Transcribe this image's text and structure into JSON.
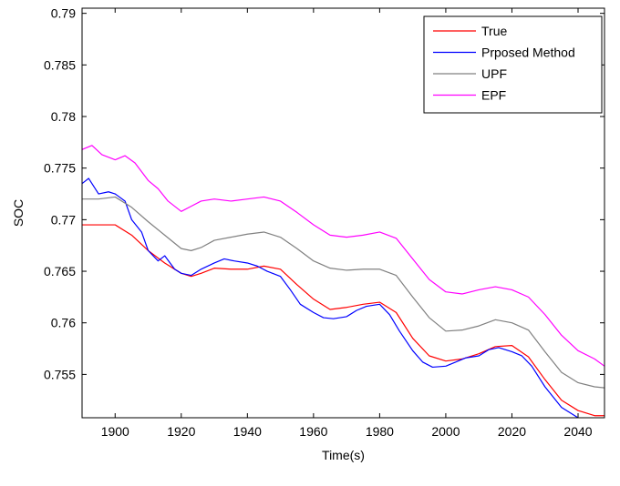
{
  "chart_data": {
    "type": "line",
    "title": "",
    "xlabel": "Time(s)",
    "ylabel": "SOC",
    "xlim": [
      1890,
      2048
    ],
    "ylim": [
      0.7508,
      0.7905
    ],
    "xticks": [
      1900,
      1920,
      1940,
      1960,
      1980,
      2000,
      2020,
      2040
    ],
    "yticks": [
      0.755,
      0.76,
      0.765,
      0.77,
      0.775,
      0.78,
      0.785,
      0.79
    ],
    "ytick_labels": [
      "0.755",
      "0.76",
      "0.765",
      "0.77",
      "0.775",
      "0.78",
      "0.785",
      "0.79"
    ],
    "grid": false,
    "legend_position": "top-right",
    "series": [
      {
        "name": "True",
        "color": "#ff0000",
        "x": [
          1890,
          1895,
          1900,
          1905,
          1910,
          1915,
          1920,
          1923,
          1926,
          1930,
          1935,
          1940,
          1945,
          1950,
          1955,
          1960,
          1965,
          1970,
          1975,
          1980,
          1985,
          1990,
          1995,
          2000,
          2005,
          2010,
          2015,
          2020,
          2025,
          2030,
          2035,
          2040,
          2045,
          2048
        ],
        "y": [
          0.7695,
          0.7695,
          0.7695,
          0.7685,
          0.767,
          0.7658,
          0.7648,
          0.7645,
          0.7648,
          0.7653,
          0.7652,
          0.7652,
          0.7655,
          0.7652,
          0.7637,
          0.7623,
          0.7613,
          0.7615,
          0.7618,
          0.762,
          0.761,
          0.7585,
          0.7568,
          0.7563,
          0.7565,
          0.757,
          0.7577,
          0.7578,
          0.7567,
          0.7545,
          0.7525,
          0.7515,
          0.751,
          0.751
        ]
      },
      {
        "name": "Prposed Method",
        "color": "#0000ff",
        "x": [
          1890,
          1892,
          1895,
          1898,
          1900,
          1903,
          1905,
          1908,
          1910,
          1913,
          1915,
          1918,
          1920,
          1923,
          1926,
          1930,
          1933,
          1936,
          1940,
          1943,
          1946,
          1950,
          1953,
          1956,
          1960,
          1963,
          1966,
          1970,
          1973,
          1976,
          1980,
          1983,
          1986,
          1990,
          1993,
          1996,
          2000,
          2003,
          2006,
          2010,
          2013,
          2016,
          2020,
          2023,
          2026,
          2030,
          2035,
          2040,
          2045,
          2048
        ],
        "y": [
          0.7735,
          0.774,
          0.7725,
          0.7727,
          0.7725,
          0.7718,
          0.77,
          0.7688,
          0.767,
          0.766,
          0.7665,
          0.7652,
          0.7648,
          0.7646,
          0.7652,
          0.7658,
          0.7662,
          0.766,
          0.7658,
          0.7655,
          0.765,
          0.7645,
          0.7632,
          0.7618,
          0.761,
          0.7605,
          0.7604,
          0.7606,
          0.7612,
          0.7616,
          0.7618,
          0.7608,
          0.7592,
          0.7573,
          0.7562,
          0.7557,
          0.7558,
          0.7562,
          0.7566,
          0.7568,
          0.7574,
          0.7576,
          0.7572,
          0.7568,
          0.7558,
          0.7538,
          0.7518,
          0.7508,
          0.7505,
          0.7502
        ]
      },
      {
        "name": "UPF",
        "color": "#808080",
        "x": [
          1890,
          1895,
          1900,
          1905,
          1910,
          1915,
          1920,
          1923,
          1926,
          1930,
          1935,
          1940,
          1945,
          1950,
          1955,
          1960,
          1965,
          1970,
          1975,
          1980,
          1985,
          1990,
          1995,
          2000,
          2005,
          2010,
          2015,
          2020,
          2025,
          2030,
          2035,
          2040,
          2045,
          2048
        ],
        "y": [
          0.772,
          0.772,
          0.7722,
          0.7712,
          0.7698,
          0.7685,
          0.7672,
          0.767,
          0.7673,
          0.768,
          0.7683,
          0.7686,
          0.7688,
          0.7683,
          0.7672,
          0.766,
          0.7653,
          0.7651,
          0.7652,
          0.7652,
          0.7646,
          0.7625,
          0.7605,
          0.7592,
          0.7593,
          0.7597,
          0.7603,
          0.76,
          0.7593,
          0.7572,
          0.7552,
          0.7542,
          0.7538,
          0.7537
        ]
      },
      {
        "name": "EPF",
        "color": "#ff00ff",
        "x": [
          1890,
          1893,
          1896,
          1900,
          1903,
          1906,
          1910,
          1913,
          1916,
          1920,
          1923,
          1926,
          1930,
          1935,
          1940,
          1945,
          1950,
          1955,
          1960,
          1965,
          1970,
          1975,
          1980,
          1985,
          1990,
          1995,
          2000,
          2005,
          2010,
          2015,
          2020,
          2025,
          2030,
          2035,
          2040,
          2045,
          2048
        ],
        "y": [
          0.7768,
          0.7772,
          0.7763,
          0.7758,
          0.7762,
          0.7755,
          0.7738,
          0.773,
          0.7718,
          0.7708,
          0.7713,
          0.7718,
          0.772,
          0.7718,
          0.772,
          0.7722,
          0.7718,
          0.7707,
          0.7695,
          0.7685,
          0.7683,
          0.7685,
          0.7688,
          0.7682,
          0.7662,
          0.7642,
          0.763,
          0.7628,
          0.7632,
          0.7635,
          0.7632,
          0.7625,
          0.7608,
          0.7588,
          0.7573,
          0.7565,
          0.7558
        ]
      }
    ]
  }
}
